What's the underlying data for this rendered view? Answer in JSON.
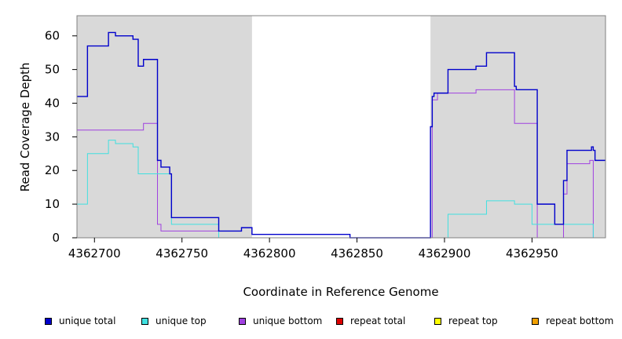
{
  "chart_data": {
    "type": "line",
    "title": "",
    "xlabel": "Coordinate in Reference Genome",
    "ylabel": "Read Coverage Depth",
    "xlim": [
      4362690,
      4362992
    ],
    "ylim": [
      0,
      66
    ],
    "x_ticks": [
      4362700,
      4362750,
      4362800,
      4362850,
      4362900,
      4362950
    ],
    "x_tick_labels": [
      "4362700",
      "4362750",
      "4362800",
      "4362850",
      "4362900",
      "4362950"
    ],
    "y_ticks": [
      0,
      10,
      20,
      30,
      40,
      50,
      60
    ],
    "y_tick_labels": [
      "0",
      "10",
      "20",
      "30",
      "40",
      "50",
      "60"
    ],
    "shaded_regions": [
      [
        4362690,
        4362790
      ],
      [
        4362892,
        4362992
      ]
    ],
    "shade_color": "#d9d9d9",
    "grid": false,
    "legend_position": "bottom",
    "series": [
      {
        "name": "unique total",
        "color": "#0000cc",
        "step": true,
        "x": [
          4362690,
          4362696,
          4362708,
          4362712,
          4362722,
          4362725,
          4362728,
          4362736,
          4362738,
          4362742,
          4362743,
          4362744,
          4362771,
          4362784,
          4362790,
          4362846,
          4362892,
          4362893,
          4362894,
          4362896,
          4362902,
          4362918,
          4362924,
          4362940,
          4362941,
          4362953,
          4362963,
          4362968,
          4362970,
          4362983,
          4362984,
          4362985,
          4362986,
          4362992
        ],
        "y": [
          42,
          57,
          61,
          60,
          59,
          51,
          53,
          23,
          21,
          21,
          19,
          6,
          2,
          3,
          1,
          0,
          33,
          42,
          43,
          43,
          50,
          51,
          55,
          45,
          44,
          10,
          4,
          17,
          26,
          26,
          27,
          26,
          23,
          23
        ]
      },
      {
        "name": "unique top",
        "color": "#40e0e0",
        "step": true,
        "x": [
          4362690,
          4362696,
          4362708,
          4362712,
          4362722,
          4362725,
          4362744,
          4362771,
          4362790,
          4362892,
          4362902,
          4362924,
          4362940,
          4362950,
          4362984,
          4362985,
          4362992
        ],
        "y": [
          10,
          25,
          29,
          28,
          27,
          19,
          4,
          0,
          0,
          0,
          7,
          11,
          10,
          4,
          4,
          0,
          0
        ]
      },
      {
        "name": "unique bottom",
        "color": "#a040e0",
        "step": true,
        "x": [
          4362690,
          4362728,
          4362736,
          4362738,
          4362771,
          4362790,
          4362892,
          4362893,
          4362896,
          4362918,
          4362940,
          4362953,
          4362968,
          4362970,
          4362983,
          4362985,
          4362992
        ],
        "y": [
          32,
          34,
          4,
          2,
          0,
          0,
          0,
          41,
          43,
          44,
          34,
          0,
          13,
          22,
          23,
          0,
          0
        ]
      },
      {
        "name": "repeat total",
        "color": "#dd0000",
        "step": true,
        "x": [
          4362690,
          4362992
        ],
        "y": [
          0,
          0
        ]
      },
      {
        "name": "repeat top",
        "color": "#ffff00",
        "step": true,
        "x": [
          4362690,
          4362992
        ],
        "y": [
          0,
          0
        ]
      },
      {
        "name": "repeat bottom",
        "color": "#f0a000",
        "step": true,
        "x": [
          4362690,
          4362992
        ],
        "y": [
          0,
          0
        ]
      }
    ]
  },
  "legend": {
    "items": [
      {
        "label": "unique total",
        "color": "#0000cc"
      },
      {
        "label": "unique top",
        "color": "#40e0e0"
      },
      {
        "label": "unique bottom",
        "color": "#a040e0"
      },
      {
        "label": "repeat total",
        "color": "#dd0000"
      },
      {
        "label": "repeat top",
        "color": "#ffff00"
      },
      {
        "label": "repeat bottom",
        "color": "#f0a000"
      }
    ]
  }
}
